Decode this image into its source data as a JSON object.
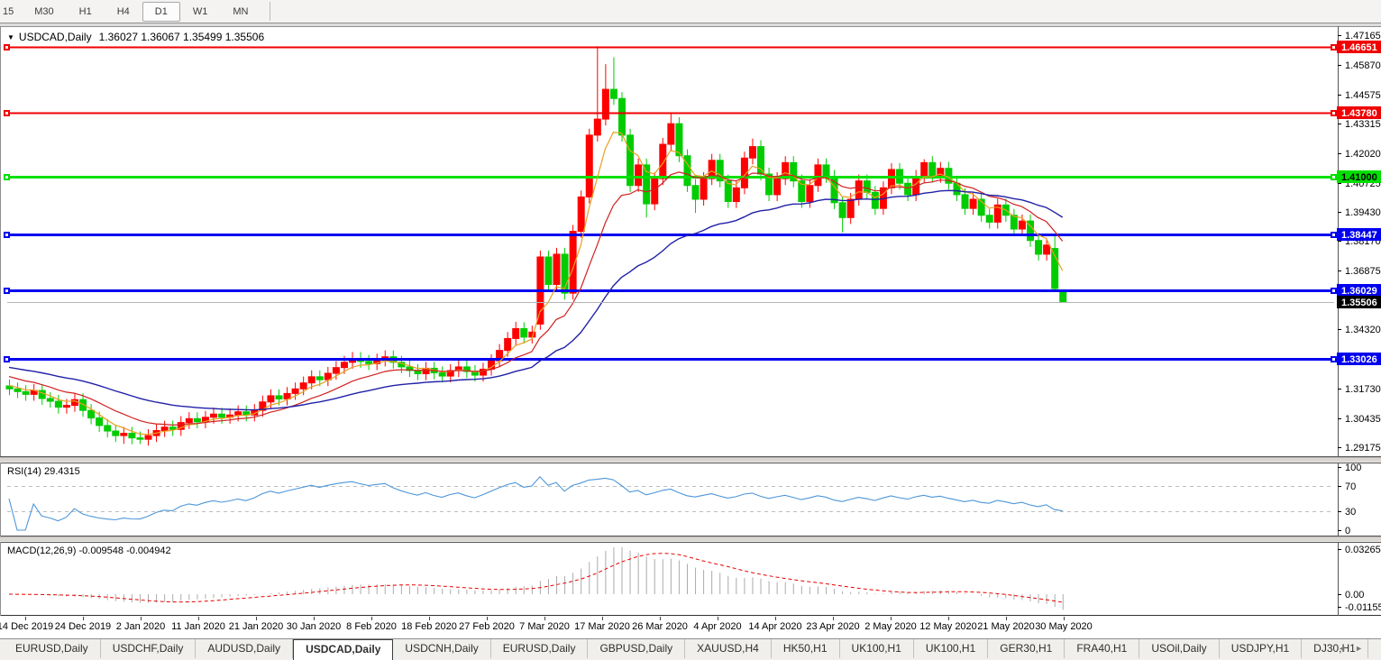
{
  "toolbar": {
    "timeframes": [
      {
        "label": "15"
      },
      {
        "label": "M30"
      },
      {
        "label": "H1"
      },
      {
        "label": "H4"
      },
      {
        "label": "D1"
      },
      {
        "label": "W1"
      },
      {
        "label": "MN"
      }
    ],
    "active": "D1"
  },
  "icons": {
    "symbol_dropdown": "▼",
    "tab_scroll_left": "◄",
    "tab_scroll_right": "►"
  },
  "chart": {
    "symbol": "USDCAD,Daily",
    "ohlc_text": "1.36027 1.36067 1.35499 1.35506",
    "colors": {
      "up": "#FF0000",
      "down": "#00CC00",
      "bid_line": "#B4B4B4",
      "bid_box": "#000000",
      "bid_text": "#FFFFFF",
      "axis_text": "#000000",
      "border": "#5a5a5a"
    },
    "price_axis_ticks": [
      "1.47165",
      "1.45870",
      "1.44575",
      "1.43315",
      "1.42020",
      "1.40725",
      "1.39430",
      "1.38170",
      "1.36875",
      "1.35580",
      "1.34320",
      "1.33025",
      "1.31730",
      "1.30435",
      "1.29175"
    ],
    "hlines": [
      {
        "price": 1.46651,
        "label": "1.46651",
        "color": "#F00000",
        "text": "#FFFFFF",
        "w": 2
      },
      {
        "price": 1.4378,
        "label": "1.43780",
        "color": "#F00000",
        "text": "#FFFFFF",
        "w": 2
      },
      {
        "price": 1.41,
        "label": "1.41000",
        "color": "#00E000",
        "text": "#000000",
        "w": 3
      },
      {
        "price": 1.38447,
        "label": "1.38447",
        "color": "#0000F0",
        "text": "#FFFFFF",
        "w": 3
      },
      {
        "price": 1.36029,
        "label": "1.36029",
        "color": "#0000F0",
        "text": "#FFFFFF",
        "w": 3
      },
      {
        "price": 1.33026,
        "label": "1.33026",
        "color": "#0000F0",
        "text": "#FFFFFF",
        "w": 3
      }
    ],
    "bid": {
      "price": 1.35506,
      "label": "1.35506"
    },
    "mas": [
      {
        "period": 5,
        "color": "#E8A020",
        "seed": 1.3195,
        "w": 1.2
      },
      {
        "period": 13,
        "color": "#D02020",
        "seed": 1.3235,
        "w": 1.2
      },
      {
        "period": 34,
        "color": "#2121A8",
        "seed": 1.3272,
        "w": 1.4
      }
    ],
    "candles": [
      [
        1.3185,
        1.3213,
        1.3144,
        1.3172
      ],
      [
        1.3172,
        1.32,
        1.3132,
        1.316
      ],
      [
        1.316,
        1.3188,
        1.312,
        1.3148
      ],
      [
        1.3148,
        1.3193,
        1.312,
        1.3165
      ],
      [
        1.3165,
        1.3193,
        1.3102,
        1.313
      ],
      [
        1.313,
        1.3158,
        1.309,
        1.3118
      ],
      [
        1.3118,
        1.3146,
        1.3064,
        1.3092
      ],
      [
        1.3092,
        1.3128,
        1.3064,
        1.31
      ],
      [
        1.31,
        1.3153,
        1.3072,
        1.3125
      ],
      [
        1.3125,
        1.3153,
        1.305,
        1.3078
      ],
      [
        1.3078,
        1.3106,
        1.3017,
        1.3045
      ],
      [
        1.3045,
        1.3073,
        1.2984,
        1.3012
      ],
      [
        1.3012,
        1.304,
        1.296,
        1.2988
      ],
      [
        1.2988,
        1.3016,
        1.294,
        1.2968
      ],
      [
        1.2968,
        1.3006,
        1.2932,
        1.2978
      ],
      [
        1.2978,
        1.3006,
        1.293,
        1.2958
      ],
      [
        1.2958,
        1.2986,
        1.2931,
        1.2952
      ],
      [
        1.2952,
        1.2996,
        1.2924,
        1.2968
      ],
      [
        1.2968,
        1.3018,
        1.294,
        1.299
      ],
      [
        1.299,
        1.3033,
        1.2962,
        1.3005
      ],
      [
        1.3005,
        1.3033,
        1.2967,
        1.2995
      ],
      [
        1.2995,
        1.3053,
        1.2967,
        1.3025
      ],
      [
        1.3025,
        1.307,
        1.2997,
        1.3042
      ],
      [
        1.3042,
        1.307,
        1.3,
        1.3028
      ],
      [
        1.3028,
        1.3076,
        1.3,
        1.3048
      ],
      [
        1.3048,
        1.309,
        1.302,
        1.3062
      ],
      [
        1.3062,
        1.309,
        1.302,
        1.3048
      ],
      [
        1.3048,
        1.3086,
        1.302,
        1.3058
      ],
      [
        1.3058,
        1.31,
        1.303,
        1.3072
      ],
      [
        1.3072,
        1.31,
        1.303,
        1.3058
      ],
      [
        1.3058,
        1.3106,
        1.303,
        1.3078
      ],
      [
        1.3078,
        1.3143,
        1.305,
        1.3115
      ],
      [
        1.3115,
        1.317,
        1.3087,
        1.3142
      ],
      [
        1.3142,
        1.317,
        1.31,
        1.3128
      ],
      [
        1.3128,
        1.318,
        1.31,
        1.3152
      ],
      [
        1.3152,
        1.32,
        1.3124,
        1.3172
      ],
      [
        1.3172,
        1.3226,
        1.3144,
        1.3198
      ],
      [
        1.3198,
        1.3253,
        1.317,
        1.3225
      ],
      [
        1.3225,
        1.3253,
        1.3184,
        1.3212
      ],
      [
        1.3212,
        1.3268,
        1.3184,
        1.324
      ],
      [
        1.324,
        1.3293,
        1.3212,
        1.3265
      ],
      [
        1.3265,
        1.3316,
        1.3237,
        1.3288
      ],
      [
        1.3288,
        1.3333,
        1.326,
        1.3305
      ],
      [
        1.3305,
        1.3333,
        1.3264,
        1.3292
      ],
      [
        1.3292,
        1.332,
        1.3254,
        1.3282
      ],
      [
        1.3282,
        1.3326,
        1.3254,
        1.3298
      ],
      [
        1.3298,
        1.334,
        1.327,
        1.3312
      ],
      [
        1.3312,
        1.334,
        1.326,
        1.3288
      ],
      [
        1.3288,
        1.3316,
        1.324,
        1.3268
      ],
      [
        1.3268,
        1.3296,
        1.3224,
        1.3252
      ],
      [
        1.3252,
        1.328,
        1.321,
        1.3238
      ],
      [
        1.3238,
        1.329,
        1.321,
        1.3262
      ],
      [
        1.3262,
        1.329,
        1.3214,
        1.3242
      ],
      [
        1.3242,
        1.327,
        1.32,
        1.3228
      ],
      [
        1.3228,
        1.328,
        1.32,
        1.3252
      ],
      [
        1.3252,
        1.3296,
        1.3224,
        1.3268
      ],
      [
        1.3268,
        1.3296,
        1.322,
        1.3248
      ],
      [
        1.3248,
        1.3276,
        1.3204,
        1.3232
      ],
      [
        1.3232,
        1.3286,
        1.3204,
        1.3258
      ],
      [
        1.3258,
        1.3323,
        1.323,
        1.3295
      ],
      [
        1.3295,
        1.3368,
        1.3267,
        1.334
      ],
      [
        1.334,
        1.342,
        1.3312,
        1.3392
      ],
      [
        1.3392,
        1.3465,
        1.3364,
        1.3435
      ],
      [
        1.3435,
        1.3463,
        1.337,
        1.3398
      ],
      [
        1.3398,
        1.3448,
        1.337,
        1.342
      ],
      [
        1.3455,
        1.3776,
        1.343,
        1.3748
      ],
      [
        1.3748,
        1.3776,
        1.36,
        1.3628
      ],
      [
        1.3628,
        1.3788,
        1.36,
        1.376
      ],
      [
        1.376,
        1.3788,
        1.3562,
        1.359
      ],
      [
        1.359,
        1.3888,
        1.3562,
        1.386
      ],
      [
        1.386,
        1.4038,
        1.3832,
        1.401
      ],
      [
        1.401,
        1.4308,
        1.3982,
        1.428
      ],
      [
        1.428,
        1.4668,
        1.4252,
        1.435
      ],
      [
        1.435,
        1.459,
        1.4322,
        1.448
      ],
      [
        1.448,
        1.462,
        1.4412,
        1.444
      ],
      [
        1.444,
        1.4468,
        1.4252,
        1.428
      ],
      [
        1.428,
        1.4308,
        1.4032,
        1.406
      ],
      [
        1.406,
        1.4178,
        1.4032,
        1.415
      ],
      [
        1.415,
        1.4178,
        1.392,
        1.398
      ],
      [
        1.398,
        1.4118,
        1.3952,
        1.409
      ],
      [
        1.409,
        1.4268,
        1.4062,
        1.424
      ],
      [
        1.424,
        1.438,
        1.4212,
        1.433
      ],
      [
        1.433,
        1.4358,
        1.4162,
        1.419
      ],
      [
        1.419,
        1.4218,
        1.4032,
        1.406
      ],
      [
        1.406,
        1.4088,
        1.394,
        1.4
      ],
      [
        1.4,
        1.4118,
        1.3972,
        1.409
      ],
      [
        1.409,
        1.4198,
        1.4062,
        1.417
      ],
      [
        1.417,
        1.4198,
        1.4052,
        1.408
      ],
      [
        1.408,
        1.4108,
        1.3962,
        1.399
      ],
      [
        1.399,
        1.4078,
        1.3962,
        1.405
      ],
      [
        1.405,
        1.4208,
        1.4022,
        1.418
      ],
      [
        1.418,
        1.4265,
        1.4152,
        1.423
      ],
      [
        1.423,
        1.4258,
        1.4082,
        1.411
      ],
      [
        1.411,
        1.4138,
        1.3992,
        1.402
      ],
      [
        1.402,
        1.4118,
        1.3992,
        1.409
      ],
      [
        1.409,
        1.4188,
        1.4062,
        1.416
      ],
      [
        1.416,
        1.4188,
        1.4052,
        1.408
      ],
      [
        1.408,
        1.4108,
        1.3962,
        1.399
      ],
      [
        1.399,
        1.4088,
        1.3962,
        1.406
      ],
      [
        1.406,
        1.4178,
        1.4032,
        1.415
      ],
      [
        1.415,
        1.4178,
        1.4072,
        1.41
      ],
      [
        1.41,
        1.4128,
        1.3957,
        1.3985
      ],
      [
        1.3985,
        1.4013,
        1.3855,
        1.392
      ],
      [
        1.392,
        1.4028,
        1.3892,
        1.4
      ],
      [
        1.4,
        1.4108,
        1.3972,
        1.408
      ],
      [
        1.408,
        1.4108,
        1.4002,
        1.403
      ],
      [
        1.403,
        1.4058,
        1.3932,
        1.396
      ],
      [
        1.396,
        1.4078,
        1.3932,
        1.405
      ],
      [
        1.405,
        1.4158,
        1.4022,
        1.413
      ],
      [
        1.413,
        1.4158,
        1.4042,
        1.407
      ],
      [
        1.407,
        1.4098,
        1.3992,
        1.402
      ],
      [
        1.402,
        1.4128,
        1.3992,
        1.41
      ],
      [
        1.41,
        1.4175,
        1.4072,
        1.416
      ],
      [
        1.416,
        1.4188,
        1.4072,
        1.41
      ],
      [
        1.41,
        1.4163,
        1.4072,
        1.4135
      ],
      [
        1.4135,
        1.4163,
        1.4042,
        1.407
      ],
      [
        1.407,
        1.4098,
        1.3992,
        1.402
      ],
      [
        1.402,
        1.4048,
        1.3932,
        1.396
      ],
      [
        1.396,
        1.4028,
        1.3932,
        1.4
      ],
      [
        1.4,
        1.4028,
        1.3902,
        1.393
      ],
      [
        1.393,
        1.3958,
        1.3872,
        1.39
      ],
      [
        1.39,
        1.4003,
        1.3872,
        1.3975
      ],
      [
        1.3975,
        1.4003,
        1.3902,
        1.393
      ],
      [
        1.393,
        1.3958,
        1.3842,
        1.387
      ],
      [
        1.387,
        1.3933,
        1.3842,
        1.3905
      ],
      [
        1.3905,
        1.3933,
        1.3792,
        1.382
      ],
      [
        1.382,
        1.3848,
        1.3732,
        1.376
      ],
      [
        1.376,
        1.3828,
        1.3732,
        1.38
      ],
      [
        1.3785,
        1.3845,
        1.36,
        1.361
      ],
      [
        1.36027,
        1.36067,
        1.35499,
        1.35506
      ]
    ]
  },
  "rsi": {
    "title": "RSI(14)",
    "value": "29.4315",
    "period": 14,
    "color": "#4D96D9",
    "level_color": "#BDBDBD",
    "axis_labels": [
      "100",
      "70",
      "30",
      "0"
    ],
    "upper": 70,
    "lower": 30
  },
  "macd": {
    "title": "MACD(12,26,9)",
    "values": "-0.009548 -0.004942",
    "fast": 12,
    "slow": 26,
    "signal": 9,
    "hist_color": "#ABABAB",
    "signal_color": "#E80000",
    "axis_labels": [
      "0.032658",
      "0.00",
      "-0.011558"
    ]
  },
  "date_axis": {
    "labels": [
      "14 Dec 2019",
      "24 Dec 2019",
      "2 Jan 2020",
      "11 Jan 2020",
      "21 Jan 2020",
      "30 Jan 2020",
      "8 Feb 2020",
      "18 Feb 2020",
      "27 Feb 2020",
      "7 Mar 2020",
      "17 Mar 2020",
      "26 Mar 2020",
      "4 Apr 2020",
      "14 Apr 2020",
      "23 Apr 2020",
      "2 May 2020",
      "12 May 2020",
      "21 May 2020",
      "30 May 2020"
    ]
  },
  "tabs": {
    "items": [
      {
        "label": "EURUSD,Daily"
      },
      {
        "label": "USDCHF,Daily"
      },
      {
        "label": "AUDUSD,Daily"
      },
      {
        "label": "USDCAD,Daily"
      },
      {
        "label": "USDCNH,Daily"
      },
      {
        "label": "EURUSD,Daily"
      },
      {
        "label": "GBPUSD,Daily"
      },
      {
        "label": "XAUUSD,H4"
      },
      {
        "label": "HK50,H1"
      },
      {
        "label": "UK100,H1"
      },
      {
        "label": "UK100,H1"
      },
      {
        "label": "GER30,H1"
      },
      {
        "label": "FRA40,H1"
      },
      {
        "label": "USOil,Daily"
      },
      {
        "label": "USDJPY,H1"
      },
      {
        "label": "DJ30,H1"
      }
    ],
    "active_index": 3
  }
}
